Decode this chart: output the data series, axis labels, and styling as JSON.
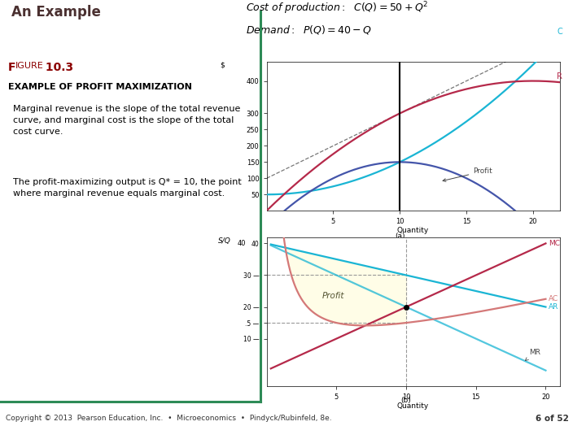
{
  "title": "An Example",
  "bg_color": "#ffffff",
  "border_color": "#2e8b57",
  "copyright": "Copyright © 2013  Pearson Education, Inc.  •  Microeconomics  •  Pindyck/Rubinfeld, 8e.",
  "page": "6 of 52",
  "cyan_color": "#1ab5d4",
  "crimson_color": "#b5294a",
  "navy_color": "#4455aa",
  "pink_color": "#d47878",
  "profit_fill": "#fffde7",
  "dark_red": "#6b1a1a"
}
